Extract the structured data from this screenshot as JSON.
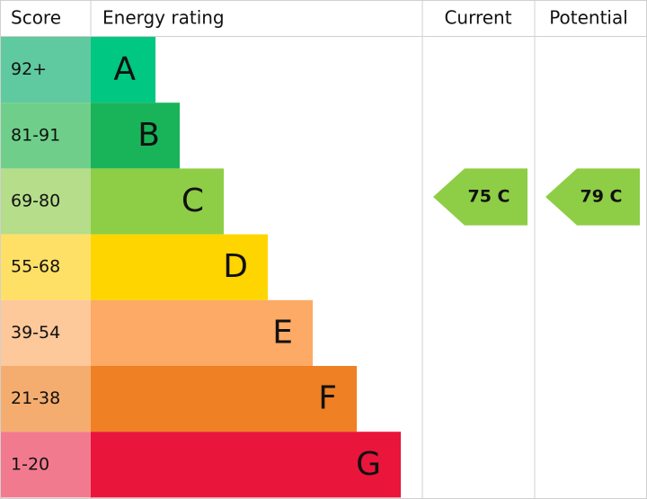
{
  "header": {
    "score": "Score",
    "rating": "Energy rating",
    "current": "Current",
    "potential": "Potential"
  },
  "rows": [
    {
      "score": "92+",
      "letter": "A",
      "color": "#00c781",
      "score_color": "#5fc9a0"
    },
    {
      "score": "81-91",
      "letter": "B",
      "color": "#19b459",
      "score_color": "#6fcf8a"
    },
    {
      "score": "69-80",
      "letter": "C",
      "color": "#8dce46",
      "score_color": "#b5dd8a"
    },
    {
      "score": "55-68",
      "letter": "D",
      "color": "#ffd500",
      "score_color": "#ffe066"
    },
    {
      "score": "39-54",
      "letter": "E",
      "color": "#fcaa65",
      "score_color": "#fdc89a"
    },
    {
      "score": "21-38",
      "letter": "F",
      "color": "#ef8023",
      "score_color": "#f5ad6f"
    },
    {
      "score": "1-20",
      "letter": "G",
      "color": "#e9153b",
      "score_color": "#f27a8f"
    }
  ],
  "current": {
    "label": "75 C",
    "color": "#8dce46"
  },
  "potential": {
    "label": "79 C",
    "color": "#8dce46"
  }
}
